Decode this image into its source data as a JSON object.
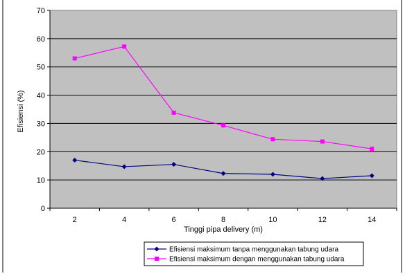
{
  "chart_data": {
    "type": "line",
    "title": "",
    "xlabel": "Tinggi pipa delivery (m)",
    "ylabel": "Efisiensi (%)",
    "categories": [
      "2",
      "4",
      "6",
      "8",
      "10",
      "12",
      "14"
    ],
    "ylim": [
      0,
      70
    ],
    "yticks": [
      "0",
      "10",
      "20",
      "30",
      "40",
      "50",
      "60",
      "70"
    ],
    "grid": true,
    "plot_background": "#c0c0c0",
    "legend_position": "bottom",
    "series": [
      {
        "name": "Efisiensi maksimum tanpa menggunakan tabung udara",
        "values": [
          17.0,
          14.7,
          15.5,
          12.3,
          12.0,
          10.5,
          11.5
        ],
        "color": "#000080",
        "marker": "diamond"
      },
      {
        "name": "Efisiensi maksimum dengan menggunakan tabung udara",
        "values": [
          53.0,
          57.2,
          33.8,
          29.3,
          24.4,
          23.6,
          21.0
        ],
        "color": "#ff00ff",
        "marker": "square"
      }
    ]
  }
}
